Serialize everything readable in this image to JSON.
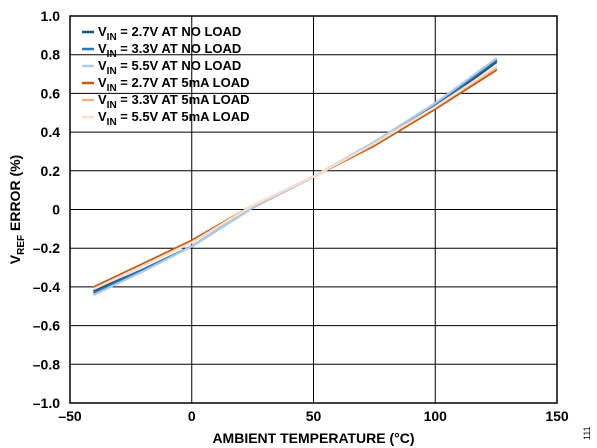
{
  "chart_data": {
    "type": "line",
    "xlabel": "AMBIENT TEMPERATURE (°C)",
    "ylabel": {
      "main": "V",
      "sub": "REF",
      "rest": " ERROR (%)"
    },
    "xlim": [
      -50,
      150
    ],
    "ylim": [
      -1.0,
      1.0
    ],
    "x_ticks": [
      -50,
      0,
      50,
      100,
      150
    ],
    "x_tick_labels": [
      "–50",
      "0",
      "50",
      "100",
      "150"
    ],
    "y_ticks": [
      1.0,
      0.8,
      0.6,
      0.4,
      0.2,
      0,
      -0.2,
      -0.4,
      -0.6,
      -0.8,
      -1.0
    ],
    "y_tick_labels": [
      "1.0",
      "0.8",
      "0.6",
      "0.4",
      "0.2",
      "0",
      "–0.2",
      "–0.4",
      "–0.6",
      "–0.8",
      "–1.0"
    ],
    "grid": true,
    "legend_position": "top-left",
    "figure_id": "111",
    "series": [
      {
        "name": {
          "main": "V",
          "sub": "IN",
          "rest": " = 2.7V AT NO LOAD"
        },
        "color": "#1f4e79",
        "x": [
          -40,
          -20,
          0,
          25,
          50,
          75,
          100,
          125
        ],
        "y": [
          -0.42,
          -0.31,
          -0.19,
          0.01,
          0.17,
          0.34,
          0.53,
          0.76
        ]
      },
      {
        "name": {
          "main": "V",
          "sub": "IN",
          "rest": " = 3.3V AT NO LOAD"
        },
        "color": "#2e75b6",
        "x": [
          -40,
          -20,
          0,
          25,
          50,
          75,
          100,
          125
        ],
        "y": [
          -0.43,
          -0.31,
          -0.19,
          0.01,
          0.17,
          0.34,
          0.54,
          0.77
        ]
      },
      {
        "name": {
          "main": "V",
          "sub": "IN",
          "rest": " = 5.5V AT NO LOAD"
        },
        "color": "#aecbe6",
        "x": [
          -40,
          -20,
          0,
          25,
          50,
          75,
          100,
          125
        ],
        "y": [
          -0.44,
          -0.32,
          -0.19,
          0.01,
          0.17,
          0.35,
          0.55,
          0.78
        ]
      },
      {
        "name": {
          "main": "V",
          "sub": "IN",
          "rest": " = 2.7V AT 5mA LOAD"
        },
        "color": "#c55a11",
        "x": [
          -40,
          -20,
          0,
          25,
          50,
          75,
          100,
          125
        ],
        "y": [
          -0.4,
          -0.28,
          -0.16,
          0.02,
          0.17,
          0.33,
          0.52,
          0.72
        ]
      },
      {
        "name": {
          "main": "V",
          "sub": "IN",
          "rest": " = 3.3V AT 5mA LOAD"
        },
        "color": "#f4b183",
        "x": [
          -40,
          -20,
          0,
          25,
          50,
          75,
          100,
          125
        ],
        "y": [
          -0.41,
          -0.29,
          -0.17,
          0.02,
          0.17,
          0.34,
          0.53,
          0.73
        ]
      },
      {
        "name": {
          "main": "V",
          "sub": "IN",
          "rest": " = 5.5V AT 5mA LOAD"
        },
        "color": "#fbe0d0",
        "x": [
          -40,
          -20,
          0,
          25,
          50,
          75,
          100,
          125
        ],
        "y": [
          -0.41,
          -0.29,
          -0.17,
          0.02,
          0.17,
          0.34,
          0.53,
          0.74
        ]
      }
    ]
  }
}
